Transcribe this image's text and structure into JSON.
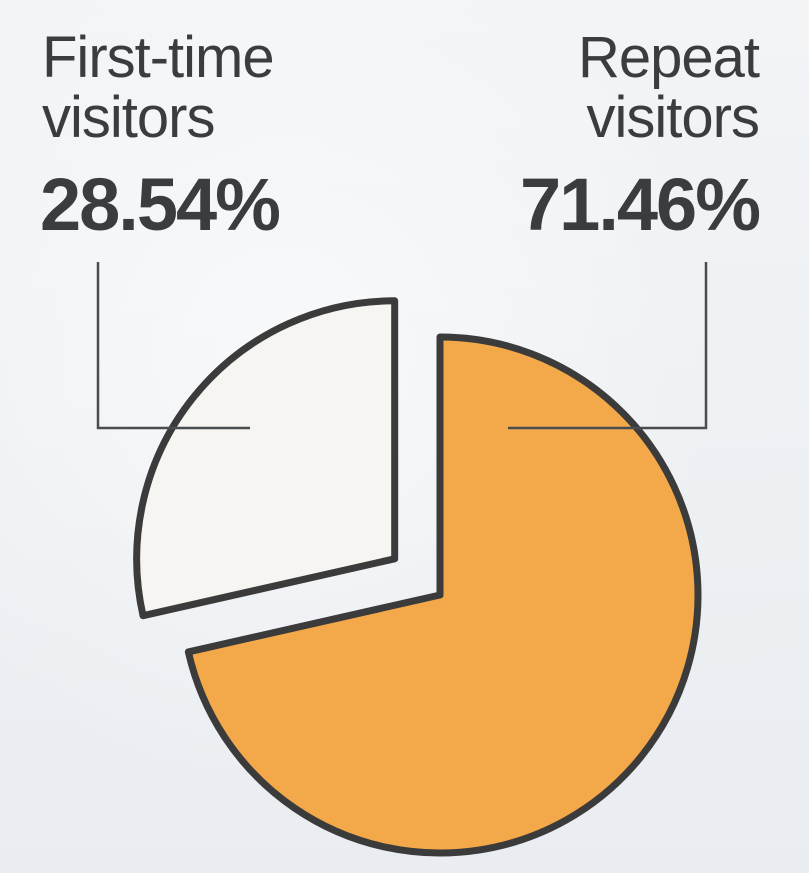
{
  "chart_data": {
    "type": "pie",
    "slices": [
      {
        "label_line1": "First-time",
        "label_line2": "visitors",
        "value_text": "28.54%",
        "value": 28.54,
        "color": "#f7f5f1",
        "exploded": true
      },
      {
        "label_line1": "Repeat",
        "label_line2": "visitors",
        "value_text": "71.46%",
        "value": 71.46,
        "color": "#f3a94a",
        "exploded": false
      }
    ]
  }
}
